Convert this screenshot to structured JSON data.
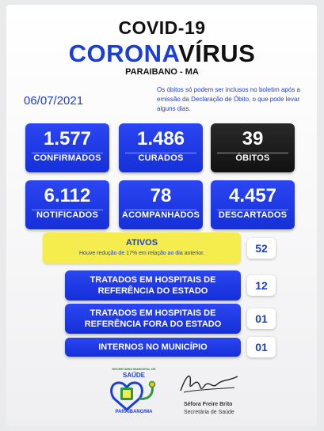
{
  "header": {
    "line1": "COVID-19",
    "line2_part1": "CORONA",
    "line2_part2": "VÍRUS",
    "city": "PARAIBANO - MA"
  },
  "date": "06/07/2021",
  "notice": "Os óbitos só podem ser inclusos no boletim após a emissão da Declaração de Óbito, o que pode levar alguns dias.",
  "stats": {
    "confirmados": {
      "value": "1.577",
      "label": "CONFIRMADOS"
    },
    "curados": {
      "value": "1.486",
      "label": "CURADOS"
    },
    "obitos": {
      "value": "39",
      "label": "ÓBITOS"
    },
    "notificados": {
      "value": "6.112",
      "label": "NOTIFICADOS"
    },
    "acompanhados": {
      "value": "78",
      "label": "ACOMPANHADOS"
    },
    "descartados": {
      "value": "4.457",
      "label": "DESCARTADOS"
    }
  },
  "ativos": {
    "title": "ATIVOS",
    "subtitle": "Houve redução de 17% em relação ao dia anterior.",
    "value": "52"
  },
  "rows": [
    {
      "label_line1": "TRATADOS EM HOSPITAIS DE",
      "label_line2": "REFERÊNCIA DO ESTADO",
      "value": "12"
    },
    {
      "label_line1": "TRATADOS EM HOSPITAIS DE",
      "label_line2": "REFERÊNCIA FORA DO ESTADO",
      "value": "01"
    },
    {
      "label_line1": "INTERNOS NO MUNICÍPIO",
      "label_line2": "",
      "value": "01"
    }
  ],
  "footer": {
    "logo_top": "SECRETARIA MUNICIPAL DE",
    "logo_saude": "SAÚDE",
    "logo_city": "PARAIBANO/MA",
    "signer_name": "Séfora Freire Brito",
    "signer_role": "Secretária de Saúde"
  },
  "colors": {
    "primary_blue": "#1b3fd6",
    "dark": "#111111",
    "highlight_yellow": "#f5ec4e"
  }
}
